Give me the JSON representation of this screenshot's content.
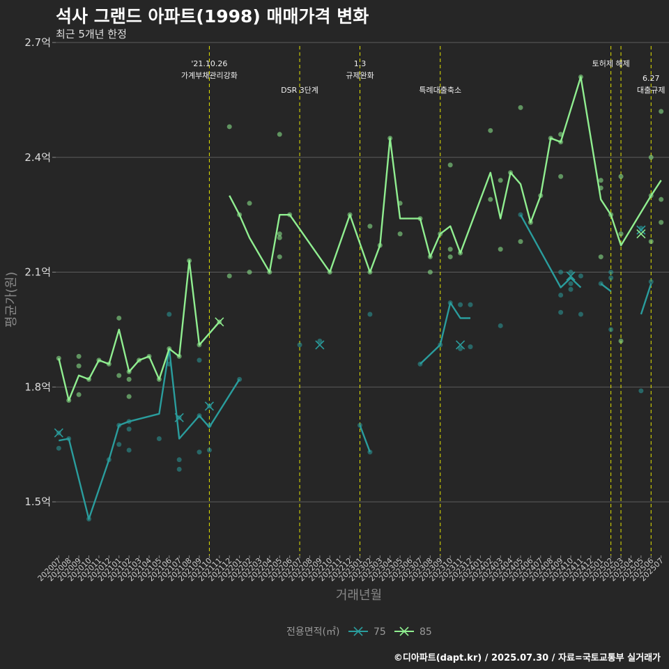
{
  "chart_data": {
    "type": "line",
    "title": "석사 그랜드 아파트(1998) 매매가격 변화",
    "subtitle": "최근 5개년 한정",
    "xlabel": "거래년월",
    "ylabel": "평균가(원)",
    "ylim": [
      1.36,
      2.72
    ],
    "y_ticks": [
      {
        "value": 1.5,
        "label": "1.5억"
      },
      {
        "value": 1.8,
        "label": "1.8억"
      },
      {
        "value": 2.1,
        "label": "2.1억"
      },
      {
        "value": 2.4,
        "label": "2.4억"
      },
      {
        "value": 2.7,
        "label": "2.7억"
      }
    ],
    "categories": [
      "202007",
      "202008",
      "202009",
      "202010",
      "202011",
      "202012",
      "202101",
      "202102",
      "202103",
      "202104",
      "202105",
      "202106",
      "202107",
      "202108",
      "202109",
      "202110",
      "202111",
      "202112",
      "202201",
      "202202",
      "202203",
      "202204",
      "202205",
      "202206",
      "202207",
      "202208",
      "202209",
      "202210",
      "202211",
      "202212",
      "202301",
      "202302",
      "202303",
      "202304",
      "202305",
      "202306",
      "202307",
      "202308",
      "202309",
      "202310",
      "202311",
      "202312",
      "202401",
      "202402",
      "202403",
      "202404",
      "202405",
      "202406",
      "202407",
      "202408",
      "202409",
      "202410",
      "202411",
      "202412",
      "202501",
      "202502",
      "202503",
      "202504",
      "202505",
      "202506",
      "202507"
    ],
    "legend_title": "전용면적(㎡)",
    "legend_position": "bottom",
    "grid": true,
    "series": [
      {
        "name": "75",
        "color": "#2a9d9d",
        "segments": [
          [
            [
              "202007",
              1.66
            ],
            [
              "202008",
              1.665
            ],
            [
              "202010",
              1.455
            ],
            [
              "202012",
              1.61
            ],
            [
              "202101",
              1.7
            ],
            [
              "202102",
              1.71
            ],
            [
              "202105",
              1.73
            ],
            [
              "202106",
              1.9
            ],
            [
              "202107",
              1.665
            ],
            [
              "202109",
              1.725
            ],
            [
              "202110",
              1.695
            ],
            [
              "202201",
              1.82
            ]
          ],
          [
            [
              "202301",
              1.7
            ],
            [
              "202302",
              1.63
            ]
          ],
          [
            [
              "202307",
              1.86
            ],
            [
              "202309",
              1.91
            ],
            [
              "202310",
              2.02
            ],
            [
              "202311",
              1.98
            ],
            [
              "202312",
              1.98
            ]
          ],
          [
            [
              "202405",
              2.25
            ],
            [
              "202409",
              2.06
            ],
            [
              "202410",
              2.085
            ],
            [
              "202411",
              2.06
            ]
          ],
          [
            [
              "202501",
              2.07
            ],
            [
              "202502",
              2.05
            ]
          ],
          [
            [
              "202505",
              1.99
            ],
            [
              "202506",
              2.07
            ]
          ]
        ],
        "points": [
          [
            "202007",
            1.68
          ],
          [
            "202007",
            1.64
          ],
          [
            "202008",
            1.665
          ],
          [
            "202010",
            1.455
          ],
          [
            "202012",
            1.61
          ],
          [
            "202101",
            1.7
          ],
          [
            "202101",
            1.65
          ],
          [
            "202102",
            1.71
          ],
          [
            "202102",
            1.69
          ],
          [
            "202102",
            1.635
          ],
          [
            "202105",
            1.665
          ],
          [
            "202106",
            1.99
          ],
          [
            "202106",
            1.86
          ],
          [
            "202107",
            1.72
          ],
          [
            "202107",
            1.61
          ],
          [
            "202107",
            1.585
          ],
          [
            "202109",
            1.87
          ],
          [
            "202109",
            1.725
          ],
          [
            "202109",
            1.63
          ],
          [
            "202110",
            1.75
          ],
          [
            "202110",
            1.7
          ],
          [
            "202110",
            1.635
          ],
          [
            "202201",
            1.82
          ],
          [
            "202207",
            1.91
          ],
          [
            "202209",
            1.92
          ],
          [
            "202301",
            1.7
          ],
          [
            "202302",
            1.63
          ],
          [
            "202302",
            1.99
          ],
          [
            "202307",
            1.86
          ],
          [
            "202309",
            1.91
          ],
          [
            "202310",
            2.02
          ],
          [
            "202311",
            1.9
          ],
          [
            "202311",
            2.015
          ],
          [
            "202312",
            2.015
          ],
          [
            "202312",
            1.905
          ],
          [
            "202403",
            1.96
          ],
          [
            "202405",
            2.25
          ],
          [
            "202409",
            2.1
          ],
          [
            "202409",
            2.04
          ],
          [
            "202409",
            1.995
          ],
          [
            "202410",
            2.1
          ],
          [
            "202410",
            2.07
          ],
          [
            "202410",
            2.055
          ],
          [
            "202411",
            2.09
          ],
          [
            "202411",
            1.99
          ],
          [
            "202501",
            2.07
          ],
          [
            "202502",
            2.085
          ],
          [
            "202502",
            2.1
          ],
          [
            "202502",
            1.95
          ],
          [
            "202505",
            2.215
          ],
          [
            "202505",
            1.79
          ],
          [
            "202506",
            2.075
          ]
        ],
        "mean_points": [
          [
            "202007",
            1.68
          ],
          [
            "202107",
            1.72
          ],
          [
            "202110",
            1.75
          ],
          [
            "202209",
            1.91
          ],
          [
            "202311",
            1.91
          ],
          [
            "202410",
            2.09
          ],
          [
            "202505",
            2.21
          ]
        ]
      },
      {
        "name": "85",
        "color": "#90ee90",
        "segments": [
          [
            [
              "202007",
              1.875
            ],
            [
              "202008",
              1.765
            ],
            [
              "202009",
              1.83
            ],
            [
              "202010",
              1.82
            ],
            [
              "202011",
              1.87
            ],
            [
              "202012",
              1.86
            ],
            [
              "202101",
              1.95
            ],
            [
              "202102",
              1.84
            ],
            [
              "202103",
              1.87
            ],
            [
              "202104",
              1.88
            ],
            [
              "202105",
              1.82
            ],
            [
              "202106",
              1.9
            ],
            [
              "202107",
              1.88
            ],
            [
              "202108",
              2.13
            ],
            [
              "202109",
              1.91
            ],
            [
              "202111",
              1.97
            ]
          ],
          [
            [
              "202112",
              2.3
            ],
            [
              "202201",
              2.25
            ],
            [
              "202202",
              2.19
            ],
            [
              "202204",
              2.1
            ],
            [
              "202205",
              2.25
            ],
            [
              "202206",
              2.25
            ],
            [
              "202210",
              2.1
            ],
            [
              "202212",
              2.25
            ],
            [
              "202302",
              2.1
            ],
            [
              "202303",
              2.17
            ],
            [
              "202304",
              2.45
            ],
            [
              "202305",
              2.24
            ],
            [
              "202307",
              2.24
            ],
            [
              "202308",
              2.14
            ],
            [
              "202309",
              2.2
            ],
            [
              "202310",
              2.22
            ],
            [
              "202311",
              2.15
            ],
            [
              "202402",
              2.36
            ],
            [
              "202403",
              2.24
            ],
            [
              "202404",
              2.36
            ],
            [
              "202405",
              2.33
            ],
            [
              "202406",
              2.23
            ],
            [
              "202407",
              2.3
            ],
            [
              "202408",
              2.45
            ],
            [
              "202409",
              2.44
            ],
            [
              "202411",
              2.61
            ],
            [
              "202501",
              2.29
            ],
            [
              "202502",
              2.25
            ],
            [
              "202503",
              2.17
            ],
            [
              "202506",
              2.3
            ],
            [
              "202507",
              2.34
            ]
          ]
        ],
        "points": [
          [
            "202007",
            1.875
          ],
          [
            "202008",
            1.765
          ],
          [
            "202009",
            1.88
          ],
          [
            "202009",
            1.855
          ],
          [
            "202009",
            1.78
          ],
          [
            "202010",
            1.82
          ],
          [
            "202011",
            1.87
          ],
          [
            "202012",
            1.86
          ],
          [
            "202101",
            1.98
          ],
          [
            "202101",
            1.83
          ],
          [
            "202102",
            1.84
          ],
          [
            "202102",
            1.82
          ],
          [
            "202102",
            1.775
          ],
          [
            "202103",
            1.87
          ],
          [
            "202104",
            1.88
          ],
          [
            "202105",
            1.82
          ],
          [
            "202106",
            1.9
          ],
          [
            "202107",
            1.88
          ],
          [
            "202108",
            2.13
          ],
          [
            "202109",
            1.91
          ],
          [
            "202111",
            1.97
          ],
          [
            "202112",
            2.48
          ],
          [
            "202112",
            2.09
          ],
          [
            "202201",
            2.25
          ],
          [
            "202202",
            2.28
          ],
          [
            "202202",
            2.1
          ],
          [
            "202204",
            2.1
          ],
          [
            "202205",
            2.46
          ],
          [
            "202205",
            2.2
          ],
          [
            "202205",
            2.19
          ],
          [
            "202205",
            2.14
          ],
          [
            "202206",
            2.25
          ],
          [
            "202210",
            2.1
          ],
          [
            "202212",
            2.25
          ],
          [
            "202302",
            2.1
          ],
          [
            "202302",
            2.22
          ],
          [
            "202303",
            2.17
          ],
          [
            "202304",
            2.45
          ],
          [
            "202305",
            2.28
          ],
          [
            "202305",
            2.2
          ],
          [
            "202307",
            2.24
          ],
          [
            "202308",
            2.14
          ],
          [
            "202308",
            2.1
          ],
          [
            "202309",
            2.2
          ],
          [
            "202310",
            2.38
          ],
          [
            "202310",
            2.16
          ],
          [
            "202310",
            2.14
          ],
          [
            "202311",
            2.15
          ],
          [
            "202402",
            2.47
          ],
          [
            "202402",
            2.29
          ],
          [
            "202403",
            2.34
          ],
          [
            "202403",
            2.16
          ],
          [
            "202404",
            2.36
          ],
          [
            "202405",
            2.53
          ],
          [
            "202405",
            2.18
          ],
          [
            "202406",
            2.23
          ],
          [
            "202407",
            2.3
          ],
          [
            "202408",
            2.45
          ],
          [
            "202409",
            2.46
          ],
          [
            "202409",
            2.44
          ],
          [
            "202409",
            2.35
          ],
          [
            "202411",
            2.61
          ],
          [
            "202501",
            2.34
          ],
          [
            "202501",
            2.32
          ],
          [
            "202501",
            2.14
          ],
          [
            "202502",
            2.25
          ],
          [
            "202503",
            2.35
          ],
          [
            "202503",
            2.2
          ],
          [
            "202503",
            1.92
          ],
          [
            "202506",
            2.4
          ],
          [
            "202506",
            2.3
          ],
          [
            "202506",
            2.18
          ],
          [
            "202507",
            2.52
          ],
          [
            "202507",
            2.29
          ],
          [
            "202507",
            2.23
          ]
        ],
        "mean_points": [
          [
            "202111",
            1.97
          ],
          [
            "202505",
            2.2
          ]
        ]
      }
    ],
    "events": [
      {
        "at": "202110",
        "lines": [
          "'21.10.26",
          "가계부채관리강화"
        ],
        "row": 0
      },
      {
        "at": "202207",
        "lines": [
          "DSR 3단계"
        ],
        "row": 1
      },
      {
        "at": "202301",
        "lines": [
          "1.3",
          "규제완화"
        ],
        "row": 0
      },
      {
        "at": "202309",
        "lines": [
          "특례대출축소"
        ],
        "row": 1
      },
      {
        "at": "202502",
        "lines": [
          "토허제 해제"
        ],
        "row": 0,
        "offset": 0
      },
      {
        "at": "202503",
        "lines": [],
        "row": 0
      },
      {
        "at": "202506",
        "lines": [
          "6.27",
          "대출규제"
        ],
        "row": 1
      }
    ],
    "event_line_color": "#e6e600",
    "caption": "©디아파트(dapt.kr) / 2025.07.30 / 자료=국토교통부 실거래가"
  }
}
